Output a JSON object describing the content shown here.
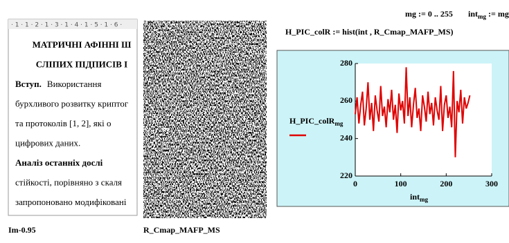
{
  "document": {
    "ruler": "· 1 · 1 · 2 · 1 · 3 · 1 · 4 · 1 · 5 · 1 · 6 ·",
    "lines": [
      {
        "bold": "МАТРИЧНІ АФІННІ Ш",
        "text": ""
      },
      {
        "bold": "СЛІПИХ ПІДПИСІВ І",
        "text": ""
      },
      {
        "bold": "Вступ.",
        "text": "Використання"
      },
      {
        "bold": "",
        "text": "бурхливого розвитку криптог"
      },
      {
        "bold": "",
        "text": "та протоколів [1, 2], які о"
      },
      {
        "bold": "",
        "text": "цифрових даних."
      },
      {
        "bold": "Аналіз останніх дослі",
        "text": ""
      },
      {
        "bold": "",
        "text": "стійкості, порівняно з скаля"
      },
      {
        "bold": "",
        "text": "запропоновано модифіковані"
      }
    ],
    "caption": "Im-0.95"
  },
  "image_caption": "R_Cmap_MAFP_MS",
  "math": {
    "range_def": "mg := 0 .. 255",
    "int_def_name": "int",
    "int_def_sub": "mg",
    "int_def_rest": " := mg",
    "hist_def": "H_PIC_colR := hist(int , R_Cmap_MAFP_MS)"
  },
  "chart_data": {
    "type": "line",
    "x": [
      0,
      4,
      8,
      12,
      16,
      20,
      24,
      28,
      32,
      36,
      40,
      44,
      48,
      52,
      56,
      60,
      64,
      68,
      72,
      76,
      80,
      84,
      88,
      92,
      96,
      100,
      104,
      108,
      112,
      116,
      120,
      124,
      128,
      132,
      136,
      140,
      144,
      148,
      152,
      156,
      160,
      164,
      168,
      172,
      176,
      180,
      184,
      188,
      192,
      196,
      200,
      204,
      208,
      212,
      216,
      220,
      224,
      228,
      232,
      236,
      240,
      244,
      248,
      252
    ],
    "series": [
      {
        "name": "H_PIC_colR",
        "name_sub": "mg",
        "color": "#e00000",
        "values": [
          253,
          262,
          248,
          258,
          265,
          247,
          256,
          270,
          250,
          259,
          244,
          263,
          255,
          249,
          268,
          252,
          257,
          246,
          261,
          254,
          266,
          250,
          258,
          243,
          264,
          255,
          260,
          248,
          278,
          252,
          262,
          246,
          258,
          267,
          251,
          256,
          244,
          263,
          257,
          249,
          265,
          253,
          259,
          247,
          262,
          255,
          250,
          268,
          244,
          258,
          263,
          251,
          257,
          246,
          276,
          230,
          260,
          254,
          266,
          248,
          262,
          256,
          259,
          263
        ]
      }
    ],
    "x_label": "int",
    "x_label_sub": "mg",
    "xlim": [
      0,
      300
    ],
    "xticks": [
      0,
      100,
      200,
      300
    ],
    "ylim": [
      220,
      280
    ],
    "yticks": [
      220,
      240,
      260,
      280
    ]
  }
}
